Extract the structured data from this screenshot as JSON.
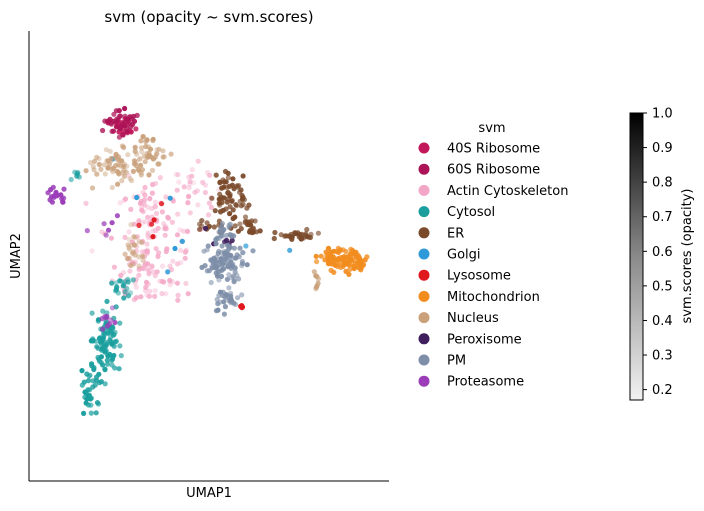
{
  "chart_data": {
    "type": "scatter",
    "title": "svm (opacity ~ svm.scores)",
    "xlabel": "UMAP1",
    "ylabel": "UMAP2",
    "ticks_shown": false,
    "xlim": [
      0,
      10
    ],
    "ylim": [
      0,
      10
    ],
    "legend": {
      "title": "svm",
      "placement": "right of plot"
    },
    "colorbar": {
      "label": "svm.scores (opacity)",
      "range": [
        0.17,
        1.0
      ],
      "ticks": [
        "1.0",
        "0.9",
        "0.8",
        "0.7",
        "0.6",
        "0.5",
        "0.4",
        "0.3",
        "0.2"
      ],
      "colormap": "greys",
      "placement": "far right"
    },
    "series": [
      {
        "name": "40S Ribosome",
        "color": "#c2185b",
        "clusters": [
          {
            "cx": 2.55,
            "cy": 7.95,
            "rx": 0.4,
            "ry": 0.25,
            "n": 25,
            "opacity": [
              0.6,
              1.0
            ]
          }
        ]
      },
      {
        "name": "60S Ribosome",
        "color": "#ad1457",
        "clusters": [
          {
            "cx": 2.55,
            "cy": 7.95,
            "rx": 0.45,
            "ry": 0.3,
            "n": 40,
            "opacity": [
              0.7,
              1.0
            ]
          }
        ]
      },
      {
        "name": "Actin Cytoskeleton",
        "color": "#f4a6c6",
        "clusters": [
          {
            "cx": 3.5,
            "cy": 5.5,
            "rx": 1.2,
            "ry": 1.3,
            "n": 130,
            "opacity": [
              0.3,
              0.9
            ]
          },
          {
            "cx": 3.5,
            "cy": 4.3,
            "rx": 1.1,
            "ry": 0.4,
            "n": 40,
            "opacity": [
              0.3,
              0.9
            ]
          },
          {
            "cx": 4.7,
            "cy": 6.5,
            "rx": 0.6,
            "ry": 0.5,
            "n": 25,
            "opacity": [
              0.2,
              0.7
            ]
          }
        ]
      },
      {
        "name": "Cytosol",
        "color": "#1a9e9e",
        "clusters": [
          {
            "cx": 2.1,
            "cy": 3.0,
            "rx": 0.4,
            "ry": 0.8,
            "n": 90,
            "opacity": [
              0.6,
              1.0
            ]
          },
          {
            "cx": 1.7,
            "cy": 2.0,
            "rx": 0.25,
            "ry": 0.55,
            "n": 35,
            "opacity": [
              0.6,
              1.0
            ]
          },
          {
            "cx": 2.6,
            "cy": 4.3,
            "rx": 0.3,
            "ry": 0.3,
            "n": 20,
            "opacity": [
              0.4,
              0.9
            ]
          },
          {
            "cx": 1.3,
            "cy": 6.8,
            "rx": 0.2,
            "ry": 0.1,
            "n": 6,
            "opacity": [
              0.4,
              0.8
            ]
          }
        ]
      },
      {
        "name": "ER",
        "color": "#7b4a2b",
        "clusters": [
          {
            "cx": 5.6,
            "cy": 6.4,
            "rx": 0.5,
            "ry": 0.45,
            "n": 60,
            "opacity": [
              0.6,
              1.0
            ]
          },
          {
            "cx": 6.1,
            "cy": 5.7,
            "rx": 0.35,
            "ry": 0.2,
            "n": 25,
            "opacity": [
              0.6,
              1.0
            ]
          },
          {
            "cx": 7.4,
            "cy": 5.45,
            "rx": 0.6,
            "ry": 0.12,
            "n": 30,
            "opacity": [
              0.6,
              1.0
            ]
          },
          {
            "cx": 5.2,
            "cy": 5.6,
            "rx": 0.45,
            "ry": 0.2,
            "n": 15,
            "opacity": [
              0.6,
              1.0
            ]
          }
        ]
      },
      {
        "name": "Golgi",
        "color": "#2e9bd8",
        "clusters": [
          {
            "cx": 4.2,
            "cy": 5.5,
            "rx": 2.5,
            "ry": 1.8,
            "n": 8,
            "opacity": [
              0.7,
              1.0
            ]
          }
        ]
      },
      {
        "name": "Lysosome",
        "color": "#e0191f",
        "clusters": [
          {
            "cx": 5.9,
            "cy": 3.9,
            "rx": 0.1,
            "ry": 0.05,
            "n": 4,
            "opacity": [
              0.9,
              1.0
            ]
          },
          {
            "cx": 3.4,
            "cy": 5.7,
            "rx": 0.8,
            "ry": 0.8,
            "n": 5,
            "opacity": [
              0.8,
              1.0
            ]
          }
        ]
      },
      {
        "name": "Mitochondrion",
        "color": "#f28c1e",
        "clusters": [
          {
            "cx": 8.9,
            "cy": 4.9,
            "rx": 0.55,
            "ry": 0.25,
            "n": 80,
            "opacity": [
              0.7,
              1.0
            ]
          },
          {
            "cx": 8.3,
            "cy": 4.95,
            "rx": 0.3,
            "ry": 0.15,
            "n": 20,
            "opacity": [
              0.7,
              1.0
            ]
          }
        ]
      },
      {
        "name": "Nucleus",
        "color": "#c9a07a",
        "clusters": [
          {
            "cx": 2.5,
            "cy": 7.0,
            "rx": 0.8,
            "ry": 0.4,
            "n": 70,
            "opacity": [
              0.4,
              0.9
            ]
          },
          {
            "cx": 3.4,
            "cy": 7.4,
            "rx": 0.45,
            "ry": 0.3,
            "n": 35,
            "opacity": [
              0.4,
              1.0
            ]
          },
          {
            "cx": 2.9,
            "cy": 5.1,
            "rx": 0.3,
            "ry": 0.5,
            "n": 25,
            "opacity": [
              0.3,
              0.8
            ]
          },
          {
            "cx": 8.0,
            "cy": 4.5,
            "rx": 0.08,
            "ry": 0.25,
            "n": 8,
            "opacity": [
              0.6,
              1.0
            ]
          }
        ]
      },
      {
        "name": "Peroxisome",
        "color": "#3f1f5e",
        "clusters": [
          {
            "cx": 5.4,
            "cy": 5.4,
            "rx": 0.4,
            "ry": 0.25,
            "n": 6,
            "opacity": [
              0.8,
              1.0
            ]
          }
        ]
      },
      {
        "name": "PM",
        "color": "#7d8ea8",
        "clusters": [
          {
            "cx": 5.4,
            "cy": 4.8,
            "rx": 0.6,
            "ry": 0.45,
            "n": 90,
            "opacity": [
              0.5,
              1.0
            ]
          },
          {
            "cx": 5.5,
            "cy": 4.0,
            "rx": 0.35,
            "ry": 0.3,
            "n": 30,
            "opacity": [
              0.5,
              1.0
            ]
          },
          {
            "cx": 5.5,
            "cy": 5.5,
            "rx": 0.35,
            "ry": 0.3,
            "n": 25,
            "opacity": [
              0.5,
              1.0
            ]
          }
        ]
      },
      {
        "name": "Proteasome",
        "color": "#9b3db8",
        "clusters": [
          {
            "cx": 0.75,
            "cy": 6.35,
            "rx": 0.25,
            "ry": 0.18,
            "n": 18,
            "opacity": [
              0.8,
              1.0
            ]
          },
          {
            "cx": 2.2,
            "cy": 3.6,
            "rx": 0.4,
            "ry": 0.25,
            "n": 10,
            "opacity": [
              0.5,
              0.9
            ]
          },
          {
            "cx": 2.1,
            "cy": 5.7,
            "rx": 0.5,
            "ry": 0.5,
            "n": 6,
            "opacity": [
              0.6,
              1.0
            ]
          }
        ]
      }
    ]
  }
}
